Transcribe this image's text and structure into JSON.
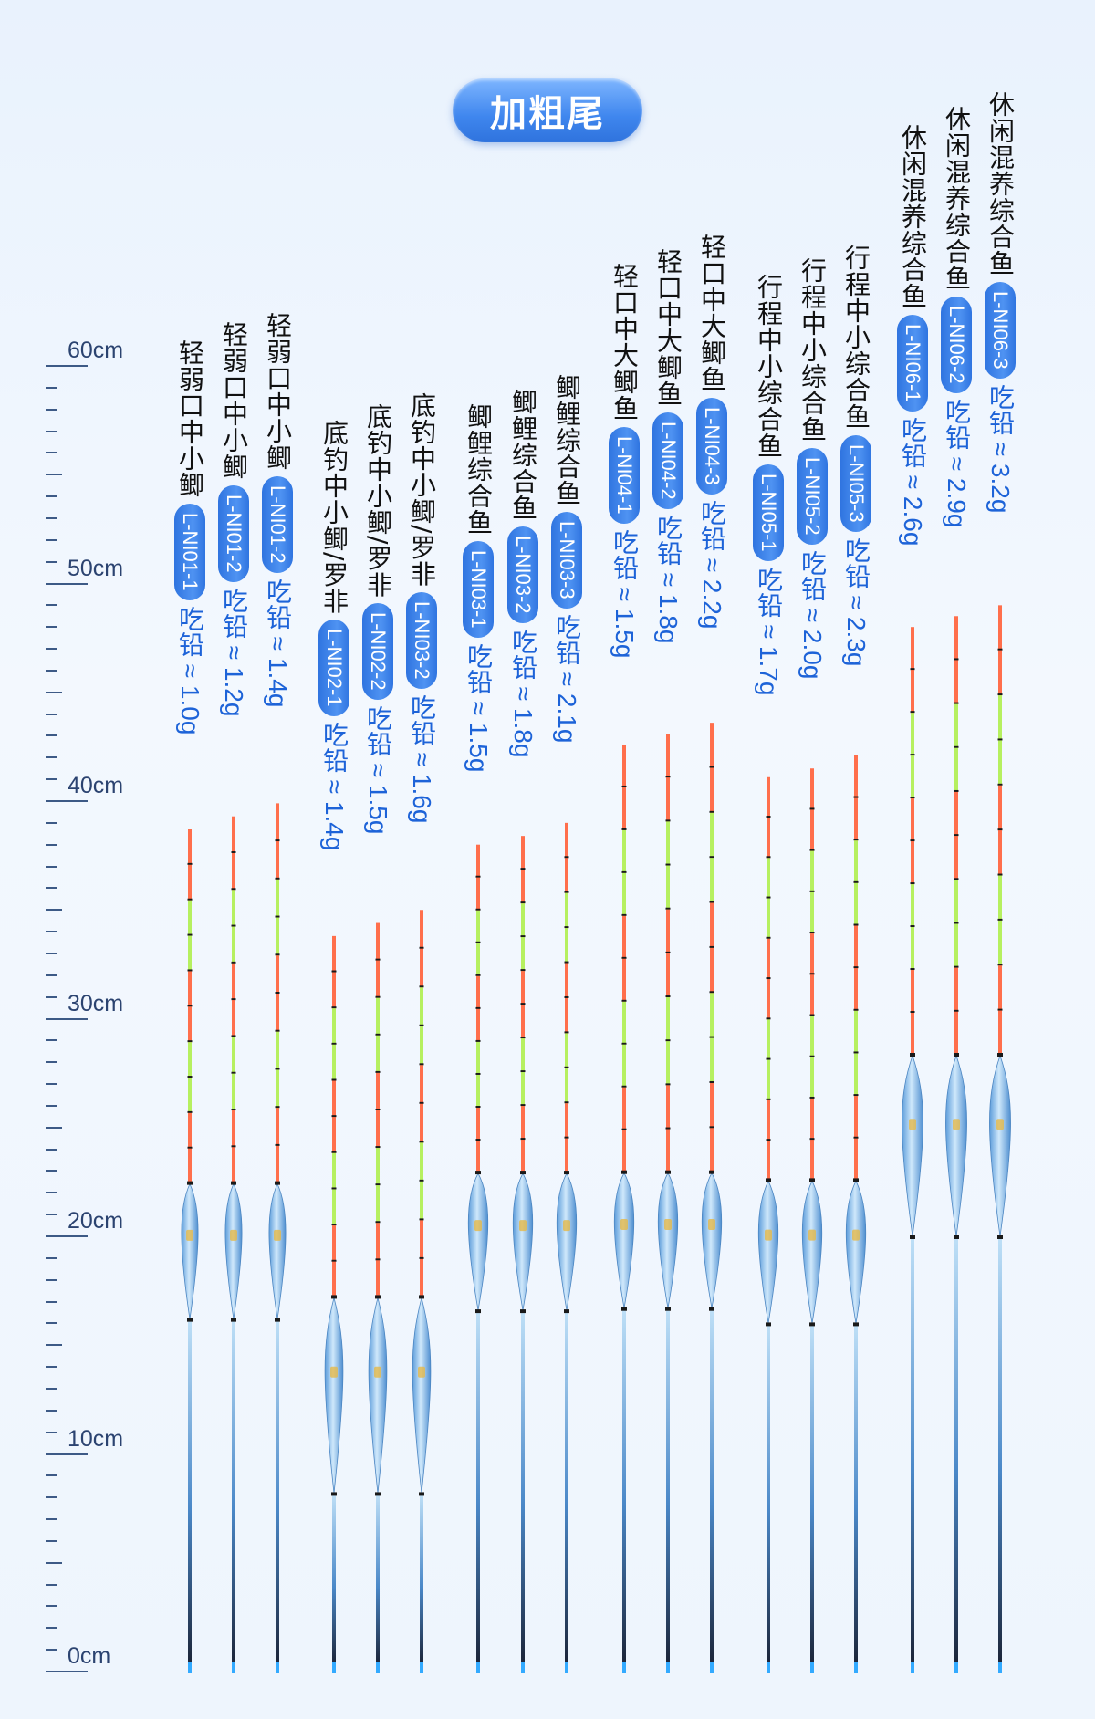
{
  "title": "加粗尾",
  "ruler": {
    "labels": [
      "60cm",
      "50cm",
      "40cm",
      "30cm",
      "20cm",
      "10cm",
      "0cm"
    ],
    "values": [
      60,
      50,
      40,
      30,
      20,
      10,
      0
    ]
  },
  "colors": {
    "tip_red": "#ff6f4c",
    "tip_green": "#b6f060",
    "body_blue": "#8fc1ef",
    "stem_dark": "#1b2438",
    "stem_light": "#bfe0f7",
    "pill_blue": "#3a82ea",
    "weight_blue": "#1d63d8"
  },
  "floats": [
    {
      "desc": "轻弱口中小鲫",
      "model": "L-NI01-1",
      "weight": "吃铅 ≈ 1.0g",
      "length_cm": 38.7
    },
    {
      "desc": "轻弱口中小鲫",
      "model": "L-NI01-2",
      "weight": "吃铅 ≈ 1.2g",
      "length_cm": 39.3
    },
    {
      "desc": "轻弱口中小鲫",
      "model": "L-NI01-2",
      "weight": "吃铅 ≈ 1.4g",
      "length_cm": 39.9
    },
    {
      "desc": "底钓中小鲫/罗非",
      "model": "L-NI02-1",
      "weight": "吃铅 ≈ 1.4g",
      "length_cm": 33.8
    },
    {
      "desc": "底钓中小鲫/罗非",
      "model": "L-NI02-2",
      "weight": "吃铅 ≈ 1.5g",
      "length_cm": 34.4
    },
    {
      "desc": "底钓中小鲫/罗非",
      "model": "L-NI03-2",
      "weight": "吃铅 ≈ 1.6g",
      "length_cm": 35.0
    },
    {
      "desc": "鲫鲤综合鱼",
      "model": "L-NI03-1",
      "weight": "吃铅 ≈ 1.5g",
      "length_cm": 38.0
    },
    {
      "desc": "鲫鲤综合鱼",
      "model": "L-NI03-2",
      "weight": "吃铅 ≈ 1.8g",
      "length_cm": 38.4
    },
    {
      "desc": "鲫鲤综合鱼",
      "model": "L-NI03-3",
      "weight": "吃铅 ≈ 2.1g",
      "length_cm": 39.0
    },
    {
      "desc": "轻口中大鲫鱼",
      "model": "L-NI04-1",
      "weight": "吃铅 ≈ 1.5g",
      "length_cm": 42.6
    },
    {
      "desc": "轻口中大鲫鱼",
      "model": "L-NI04-2",
      "weight": "吃铅 ≈ 1.8g",
      "length_cm": 43.1
    },
    {
      "desc": "轻口中大鲫鱼",
      "model": "L-NI04-3",
      "weight": "吃铅 ≈ 2.2g",
      "length_cm": 43.6
    },
    {
      "desc": "行程中小综合鱼",
      "model": "L-NI05-1",
      "weight": "吃铅 ≈ 1.7g",
      "length_cm": 41.1
    },
    {
      "desc": "行程中小综合鱼",
      "model": "L-NI05-2",
      "weight": "吃铅 ≈ 2.0g",
      "length_cm": 41.5
    },
    {
      "desc": "行程中小综合鱼",
      "model": "L-NI05-3",
      "weight": "吃铅 ≈ 2.3g",
      "length_cm": 42.1
    },
    {
      "desc": "休闲混养综合鱼",
      "model": "L-NI06-1",
      "weight": "吃铅 ≈ 2.6g",
      "length_cm": 48.0
    },
    {
      "desc": "休闲混养综合鱼",
      "model": "L-NI06-2",
      "weight": "吃铅 ≈ 2.9g",
      "length_cm": 48.5
    },
    {
      "desc": "休闲混养综合鱼",
      "model": "L-NI06-3",
      "weight": "吃铅 ≈ 3.2g",
      "length_cm": 49.0
    }
  ]
}
